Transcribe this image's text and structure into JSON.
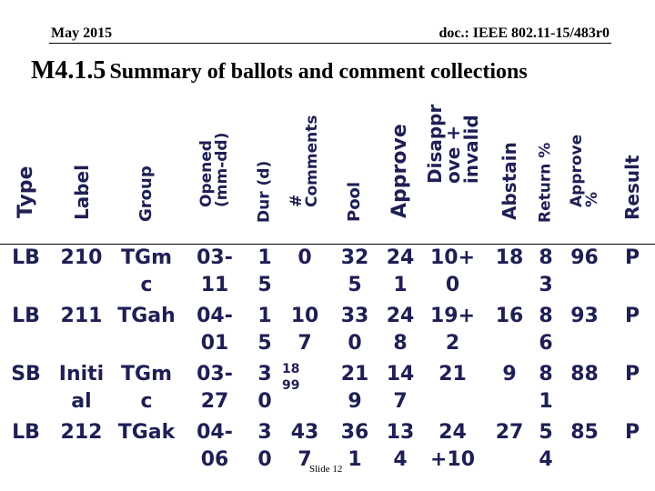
{
  "header": {
    "date": "May 2015",
    "doc": "doc.: IEEE 802.11-15/483r0"
  },
  "title": {
    "number": "M4.1.5",
    "text": "Summary of ballots and comment collections"
  },
  "columns": [
    {
      "key": "type",
      "label": "Type"
    },
    {
      "key": "label",
      "label": "Label"
    },
    {
      "key": "group",
      "label": "Group"
    },
    {
      "key": "opened",
      "label": "Opened\n(mm-dd)"
    },
    {
      "key": "dur",
      "label": "Dur (d)"
    },
    {
      "key": "comments",
      "label": "#\nComments"
    },
    {
      "key": "pool",
      "label": "Pool"
    },
    {
      "key": "approve",
      "label": "Approve"
    },
    {
      "key": "disapprove",
      "label": "Disappr\nove +\ninvalid"
    },
    {
      "key": "abstain",
      "label": "Abstain"
    },
    {
      "key": "return",
      "label": "Return %"
    },
    {
      "key": "approve_pct",
      "label": "Approve\n%"
    },
    {
      "key": "result",
      "label": "Result"
    }
  ],
  "rows": [
    {
      "type": "LB",
      "label": "210",
      "group": "TGm\nc",
      "opened": "03-\n11",
      "dur": "1\n5",
      "comments": "0",
      "pool": "32\n5",
      "approve": "24\n1",
      "disapprove": "10+\n0",
      "abstain": "18",
      "return": "8\n3",
      "approve_pct": "96",
      "result": "P"
    },
    {
      "type": "LB",
      "label": "211",
      "group": "TGah",
      "opened": "04-\n01",
      "dur": "1\n5",
      "comments": "10\n7",
      "pool": "33\n0",
      "approve": "24\n8",
      "disapprove": "19+\n2",
      "abstain": "16",
      "return": "8\n6",
      "approve_pct": "93",
      "result": "P"
    },
    {
      "type": "SB",
      "label": "Initi\nal",
      "group": "TGm\nc",
      "opened": "03-\n27",
      "dur": "3\n0",
      "comments": "18\n99",
      "pool": "21\n9",
      "approve": "14\n7",
      "disapprove": "21",
      "abstain": "9",
      "return": "8\n1",
      "approve_pct": "88",
      "result": "P"
    },
    {
      "type": "LB",
      "label": "212",
      "group": "TGak",
      "opened": "04-\n06",
      "dur": "3\n0",
      "comments": "43\n7",
      "pool": "36\n1",
      "approve": "13\n4",
      "disapprove": "24\n+10",
      "abstain": "27",
      "return": "5\n4",
      "approve_pct": "85",
      "result": "P"
    }
  ],
  "footer": {
    "slide": "Slide 12"
  }
}
